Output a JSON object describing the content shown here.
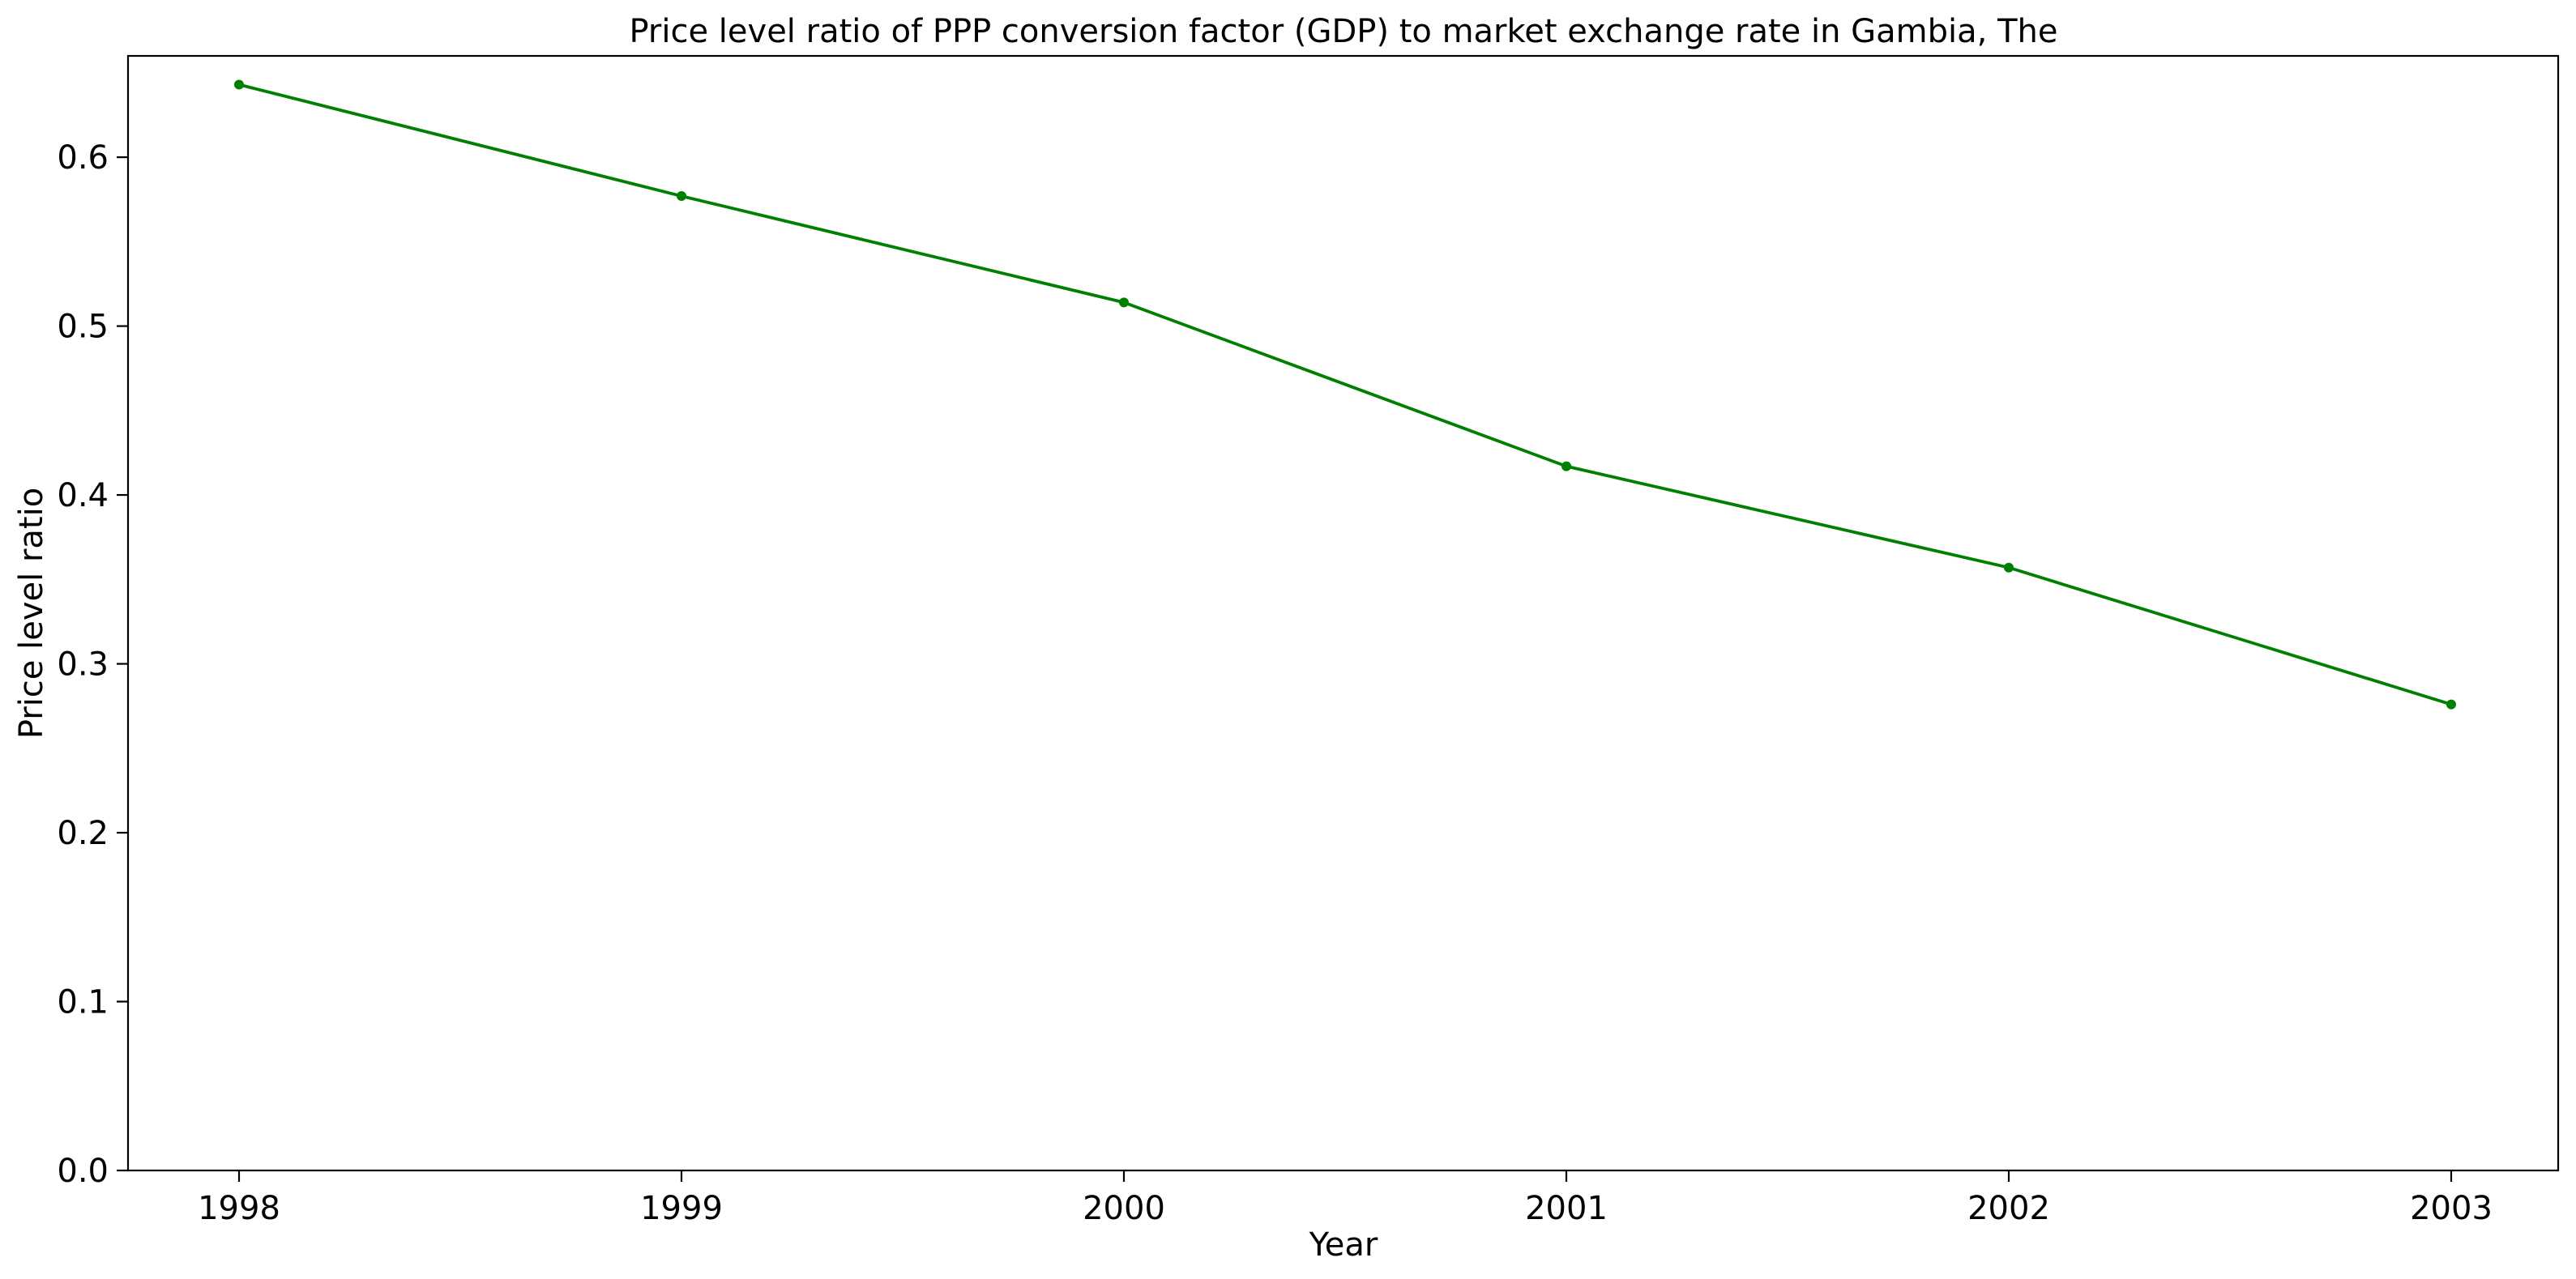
{
  "chart_data": {
    "type": "line",
    "title": "Price level ratio of PPP conversion factor (GDP) to market exchange rate in Gambia, The",
    "xlabel": "Year",
    "ylabel": "Price level ratio",
    "x": [
      "1998",
      "1999",
      "2000",
      "2001",
      "2002",
      "2003"
    ],
    "series": [
      {
        "values": [
          0.643,
          0.577,
          0.514,
          0.417,
          0.357,
          0.276
        ],
        "color": "#008000"
      }
    ],
    "ylim": [
      0.0,
      0.66
    ],
    "yticks": [
      "0.0",
      "0.1",
      "0.2",
      "0.3",
      "0.4",
      "0.5",
      "0.6"
    ],
    "grid": false,
    "legend": "none"
  }
}
